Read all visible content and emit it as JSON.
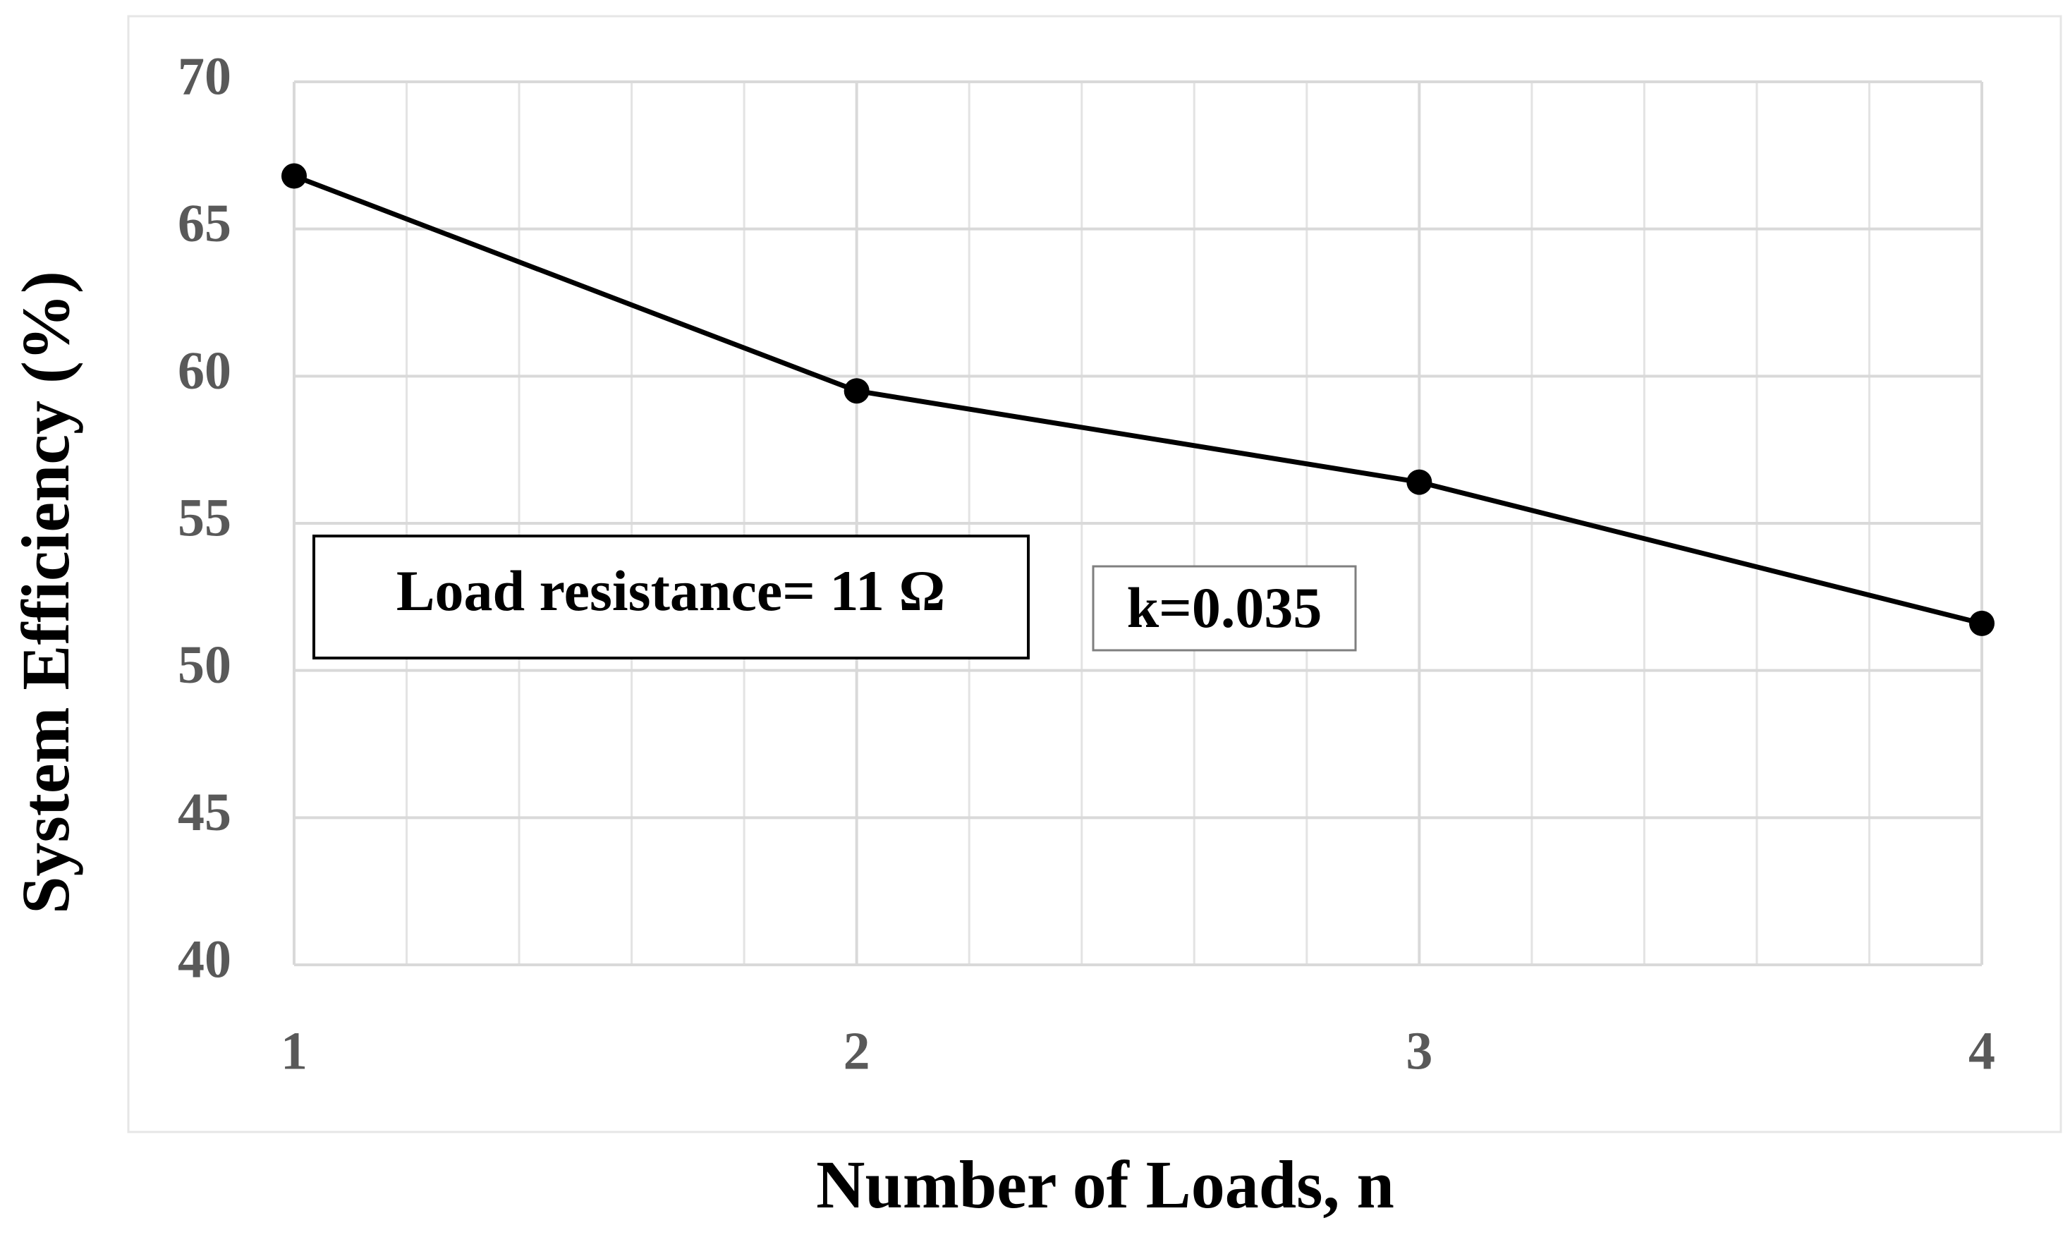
{
  "chart_data": {
    "type": "line",
    "x_label": "Number of Loads, n",
    "y_label": "System Efficiency (%)",
    "x": [
      1,
      2,
      3,
      4
    ],
    "series": [
      {
        "name": "System Efficiency",
        "color": "#000000",
        "values": [
          66.8,
          59.5,
          56.4,
          51.6
        ]
      }
    ],
    "xlim": [
      1,
      4
    ],
    "xticks": [
      1,
      2,
      3,
      4
    ],
    "ylim": [
      40,
      70
    ],
    "yticks": [
      40,
      45,
      50,
      55,
      60,
      65,
      70
    ],
    "grid": true,
    "annotations": [
      "Load resistance= 11 Ω",
      "k=0.035"
    ]
  }
}
